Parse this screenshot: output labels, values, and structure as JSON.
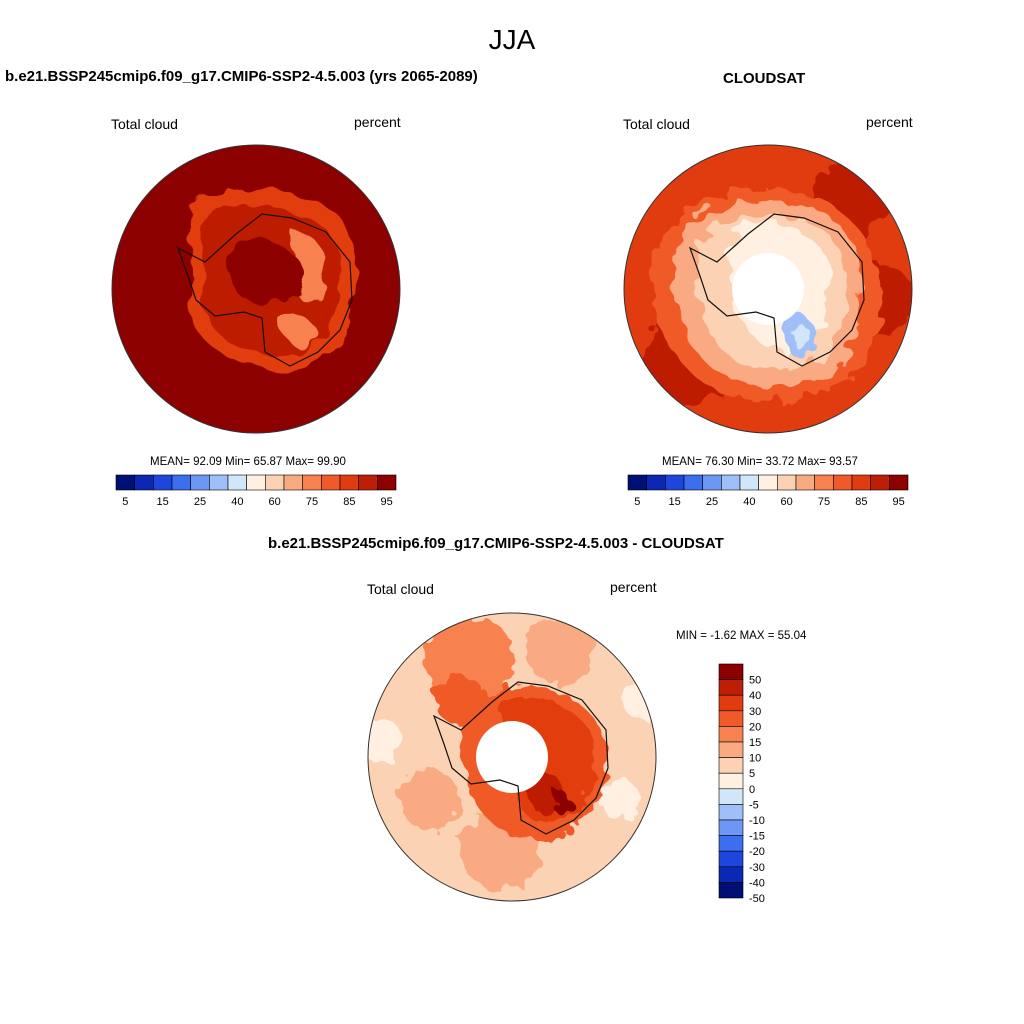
{
  "page": {
    "title": "JJA"
  },
  "panels": [
    {
      "id": "model",
      "title": "b.e21.BSSP245cmip6.f09_g17.CMIP6-SSP2-4.5.003 (yrs 2065-2089)",
      "left_label": "Total cloud",
      "right_label": "percent",
      "stats": "MEAN=  92.09  Min=  65.87  Max=  99.90"
    },
    {
      "id": "obs",
      "title": "CLOUDSAT",
      "left_label": "Total cloud",
      "right_label": "percent",
      "stats": "MEAN=  76.30  Min=  33.72  Max=  93.57"
    },
    {
      "id": "diff",
      "title": "b.e21.BSSP245cmip6.f09_g17.CMIP6-SSP2-4.5.003 - CLOUDSAT",
      "left_label": "Total cloud",
      "right_label": "percent",
      "stats": "MIN =  -1.62 MAX =  55.04"
    }
  ],
  "chart_data": [
    {
      "type": "heatmap",
      "projection": "south polar stereographic",
      "title": "b.e21.BSSP245cmip6.f09_g17.CMIP6-SSP2-4.5.003 (yrs 2065-2089)",
      "variable": "Total cloud",
      "units": "percent",
      "mean": 92.09,
      "min": 65.87,
      "max": 99.9,
      "colorbar": {
        "orientation": "horizontal",
        "levels": [
          5,
          10,
          15,
          20,
          25,
          30,
          40,
          50,
          60,
          65,
          70,
          75,
          80,
          85,
          90,
          95
        ],
        "tick_labels": [
          "5",
          "15",
          "25",
          "40",
          "60",
          "75",
          "85",
          "95"
        ]
      }
    },
    {
      "type": "heatmap",
      "projection": "south polar stereographic",
      "title": "CLOUDSAT",
      "variable": "Total cloud",
      "units": "percent",
      "mean": 76.3,
      "min": 33.72,
      "max": 93.57,
      "colorbar": {
        "orientation": "horizontal",
        "levels": [
          5,
          10,
          15,
          20,
          25,
          30,
          40,
          50,
          60,
          65,
          70,
          75,
          80,
          85,
          90,
          95
        ],
        "tick_labels": [
          "5",
          "15",
          "25",
          "40",
          "60",
          "75",
          "85",
          "95"
        ]
      }
    },
    {
      "type": "heatmap",
      "projection": "south polar stereographic",
      "title": "b.e21.BSSP245cmip6.f09_g17.CMIP6-SSP2-4.5.003 - CLOUDSAT",
      "variable": "Total cloud",
      "units": "percent",
      "min": -1.62,
      "max": 55.04,
      "colorbar": {
        "orientation": "vertical",
        "tick_labels": [
          "50",
          "40",
          "30",
          "20",
          "15",
          "10",
          "5",
          "0",
          "-5",
          "-10",
          "-15",
          "-20",
          "-30",
          "-40",
          "-50"
        ]
      }
    }
  ],
  "colors": {
    "horiz_bar": [
      "#000f73",
      "#0a28b4",
      "#1e46dc",
      "#3c6ef0",
      "#6e96f5",
      "#a0bef8",
      "#d2e6fa",
      "#fff0e1",
      "#fcd2b4",
      "#faaa82",
      "#f78250",
      "#f05a28",
      "#e13c0f",
      "#be1e05",
      "#8c0000"
    ],
    "vert_bar": [
      "#8c0000",
      "#be1e05",
      "#e13c0f",
      "#f05a28",
      "#f78250",
      "#faaa82",
      "#fcd2b4",
      "#fff0e1",
      "#d2e6fa",
      "#a0bef8",
      "#6e96f5",
      "#3c6ef0",
      "#1e46dc",
      "#0a28b4",
      "#000f73"
    ]
  }
}
